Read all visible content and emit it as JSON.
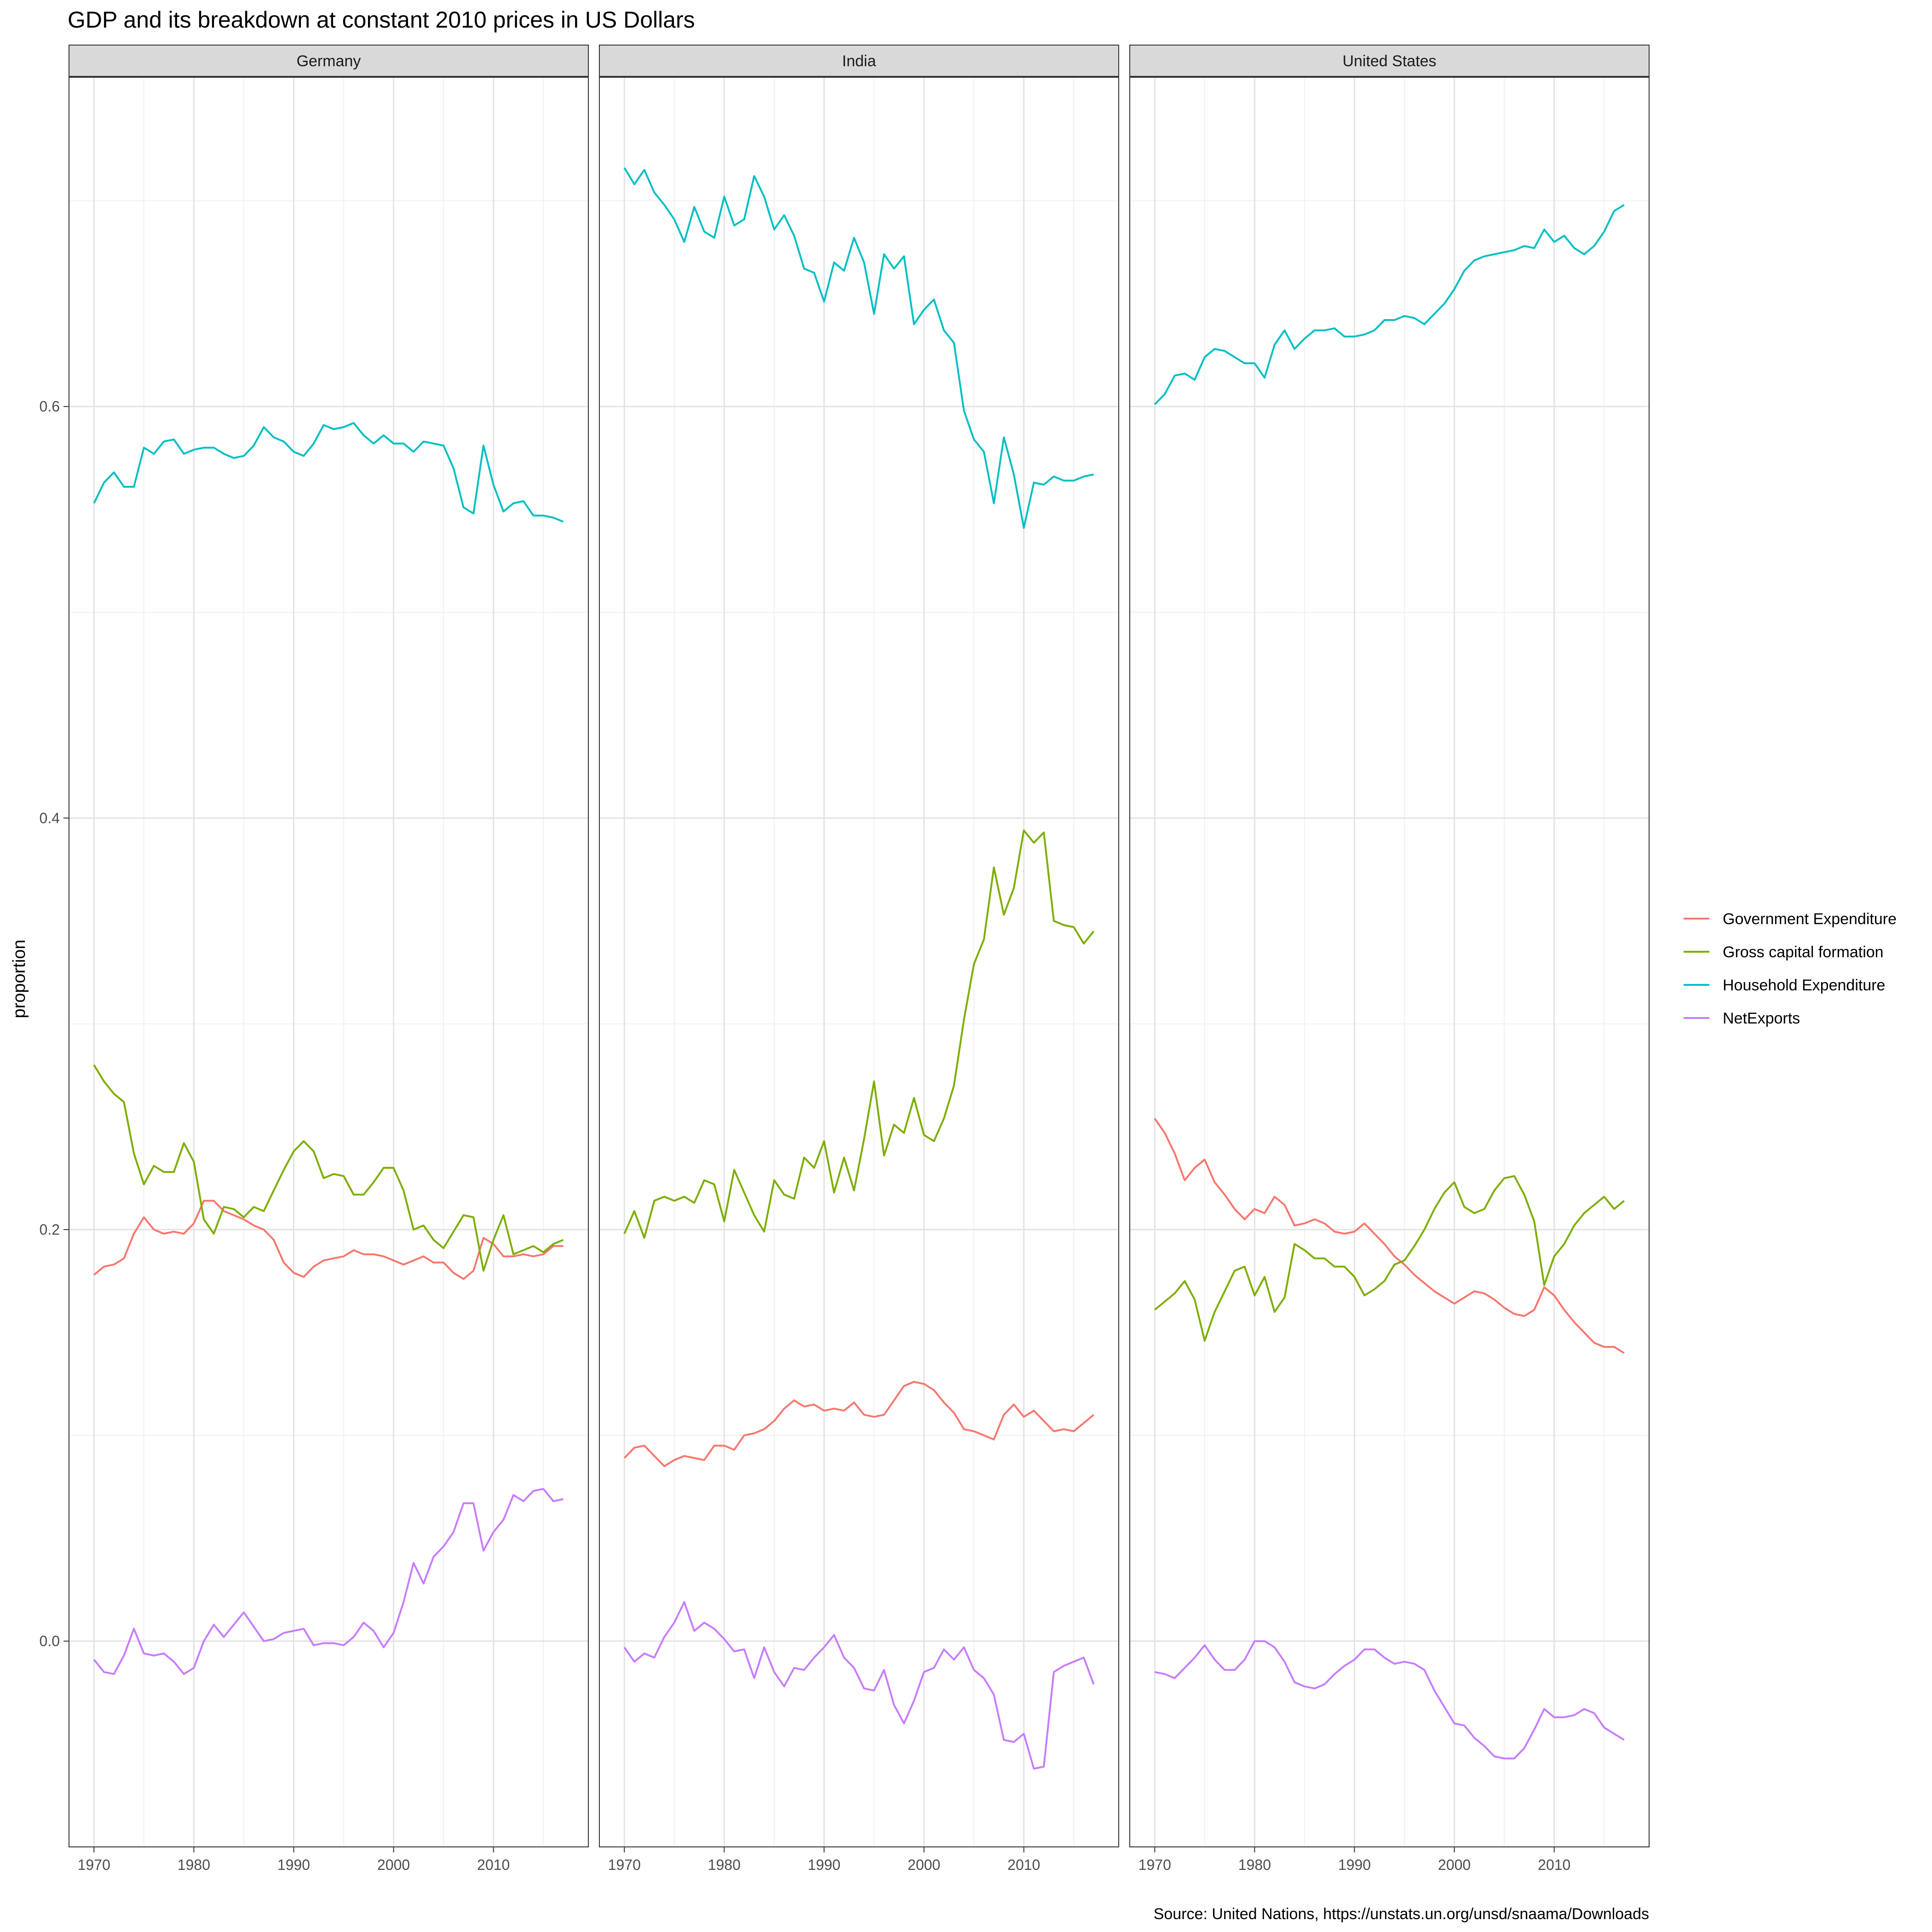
{
  "title": "GDP and its breakdown at constant 2010 prices in US Dollars",
  "ylabel": "proportion",
  "caption": "Source: United Nations, https://unstats.un.org/unsd/snaama/Downloads",
  "colors": {
    "Government Expenditure": "#F8766D",
    "Gross capital formation": "#7CAE00",
    "Household Expenditure": "#00BFC4",
    "NetExports": "#C77CFF"
  },
  "chart_data": {
    "type": "line",
    "facets": [
      "Germany",
      "India",
      "United States"
    ],
    "xlim": [
      1967.5,
      2019.5
    ],
    "ylim": [
      -0.1,
      0.76
    ],
    "x_ticks": [
      1970,
      1980,
      1990,
      2000,
      2010
    ],
    "y_ticks": [
      0.0,
      0.2,
      0.4,
      0.6
    ],
    "y_tick_labels": [
      "0.0",
      "0.2",
      "0.4",
      "0.6"
    ],
    "legend_position": "right",
    "grid": true,
    "series_names": [
      "Government Expenditure",
      "Gross capital formation",
      "Household Expenditure",
      "NetExports"
    ],
    "year_start": 1970,
    "data": {
      "Germany": {
        "Government Expenditure": [
          0.178,
          0.182,
          0.183,
          0.186,
          0.198,
          0.206,
          0.2,
          0.198,
          0.199,
          0.198,
          0.203,
          0.214,
          0.214,
          0.209,
          0.207,
          0.205,
          0.202,
          0.2,
          0.195,
          0.184,
          0.179,
          0.177,
          0.182,
          0.185,
          0.186,
          0.187,
          0.19,
          0.188,
          0.188,
          0.187,
          0.185,
          0.183,
          0.185,
          0.187,
          0.184,
          0.184,
          0.179,
          0.176,
          0.18,
          0.196,
          0.193,
          0.187,
          0.187,
          0.188,
          0.187,
          0.188,
          0.192,
          0.192
        ],
        "Gross capital formation": [
          0.28,
          0.272,
          0.266,
          0.262,
          0.237,
          0.222,
          0.231,
          0.228,
          0.228,
          0.242,
          0.233,
          0.205,
          0.198,
          0.211,
          0.21,
          0.206,
          0.211,
          0.209,
          0.219,
          0.229,
          0.238,
          0.243,
          0.238,
          0.225,
          0.227,
          0.226,
          0.217,
          0.217,
          0.223,
          0.23,
          0.23,
          0.219,
          0.2,
          0.202,
          0.195,
          0.191,
          0.199,
          0.207,
          0.206,
          0.18,
          0.195,
          0.207,
          0.188,
          0.19,
          0.192,
          0.189,
          0.193,
          0.195
        ],
        "Household Expenditure": [
          0.553,
          0.563,
          0.568,
          0.561,
          0.561,
          0.58,
          0.577,
          0.583,
          0.584,
          0.577,
          0.579,
          0.58,
          0.58,
          0.577,
          0.575,
          0.576,
          0.581,
          0.59,
          0.585,
          0.583,
          0.578,
          0.576,
          0.582,
          0.591,
          0.589,
          0.59,
          0.592,
          0.586,
          0.582,
          0.586,
          0.582,
          0.582,
          0.578,
          0.583,
          0.582,
          0.581,
          0.57,
          0.551,
          0.548,
          0.581,
          0.562,
          0.549,
          0.553,
          0.554,
          0.547,
          0.547,
          0.546,
          0.544
        ],
        "NetExports": [
          -0.009,
          -0.015,
          -0.016,
          -0.007,
          0.006,
          -0.006,
          -0.007,
          -0.006,
          -0.01,
          -0.016,
          -0.013,
          0.0,
          0.008,
          0.002,
          0.008,
          0.014,
          0.007,
          0.0,
          0.001,
          0.004,
          0.005,
          0.006,
          -0.002,
          -0.001,
          -0.001,
          -0.002,
          0.002,
          0.009,
          0.005,
          -0.003,
          0.004,
          0.019,
          0.038,
          0.028,
          0.041,
          0.046,
          0.053,
          0.067,
          0.067,
          0.044,
          0.053,
          0.059,
          0.071,
          0.068,
          0.073,
          0.074,
          0.068,
          0.069
        ]
      },
      "India": {
        "Government Expenditure": [
          0.089,
          0.094,
          0.095,
          0.09,
          0.085,
          0.088,
          0.09,
          0.089,
          0.088,
          0.095,
          0.095,
          0.093,
          0.1,
          0.101,
          0.103,
          0.107,
          0.113,
          0.117,
          0.114,
          0.115,
          0.112,
          0.113,
          0.112,
          0.116,
          0.11,
          0.109,
          0.11,
          0.117,
          0.124,
          0.126,
          0.125,
          0.122,
          0.116,
          0.111,
          0.103,
          0.102,
          0.1,
          0.098,
          0.11,
          0.115,
          0.109,
          0.112,
          0.107,
          0.102,
          0.103,
          0.102,
          0.106,
          0.11
        ],
        "Gross capital formation": [
          0.198,
          0.209,
          0.196,
          0.214,
          0.216,
          0.214,
          0.216,
          0.213,
          0.224,
          0.222,
          0.204,
          0.229,
          0.218,
          0.207,
          0.199,
          0.224,
          0.217,
          0.215,
          0.235,
          0.23,
          0.243,
          0.218,
          0.235,
          0.219,
          0.244,
          0.272,
          0.236,
          0.251,
          0.247,
          0.264,
          0.246,
          0.243,
          0.254,
          0.27,
          0.302,
          0.329,
          0.341,
          0.376,
          0.353,
          0.366,
          0.394,
          0.388,
          0.393,
          0.35,
          0.348,
          0.347,
          0.339,
          0.345
        ],
        "Household Expenditure": [
          0.716,
          0.708,
          0.715,
          0.704,
          0.698,
          0.691,
          0.68,
          0.697,
          0.685,
          0.682,
          0.702,
          0.688,
          0.691,
          0.712,
          0.702,
          0.686,
          0.693,
          0.683,
          0.667,
          0.665,
          0.651,
          0.67,
          0.666,
          0.682,
          0.67,
          0.645,
          0.674,
          0.667,
          0.673,
          0.64,
          0.647,
          0.652,
          0.637,
          0.631,
          0.598,
          0.584,
          0.578,
          0.553,
          0.585,
          0.567,
          0.541,
          0.563,
          0.562,
          0.566,
          0.564,
          0.564,
          0.566,
          0.567
        ],
        "NetExports": [
          -0.003,
          -0.01,
          -0.006,
          -0.008,
          0.002,
          0.009,
          0.019,
          0.005,
          0.009,
          0.006,
          0.001,
          -0.005,
          -0.004,
          -0.018,
          -0.003,
          -0.015,
          -0.022,
          -0.013,
          -0.014,
          -0.008,
          -0.003,
          0.003,
          -0.008,
          -0.013,
          -0.023,
          -0.024,
          -0.014,
          -0.031,
          -0.04,
          -0.029,
          -0.015,
          -0.013,
          -0.004,
          -0.009,
          -0.003,
          -0.014,
          -0.018,
          -0.026,
          -0.048,
          -0.049,
          -0.045,
          -0.062,
          -0.061,
          -0.015,
          -0.012,
          -0.01,
          -0.008,
          -0.021
        ]
      },
      "United States": {
        "Government Expenditure": [
          0.254,
          0.247,
          0.237,
          0.224,
          0.23,
          0.234,
          0.223,
          0.217,
          0.21,
          0.205,
          0.21,
          0.208,
          0.216,
          0.212,
          0.202,
          0.203,
          0.205,
          0.203,
          0.199,
          0.198,
          0.199,
          0.203,
          0.198,
          0.193,
          0.187,
          0.183,
          0.178,
          0.174,
          0.17,
          0.167,
          0.164,
          0.167,
          0.17,
          0.169,
          0.166,
          0.162,
          0.159,
          0.158,
          0.161,
          0.172,
          0.168,
          0.161,
          0.155,
          0.15,
          0.145,
          0.143,
          0.143,
          0.14
        ],
        "Gross capital formation": [
          0.161,
          0.165,
          0.169,
          0.175,
          0.166,
          0.146,
          0.16,
          0.17,
          0.18,
          0.182,
          0.168,
          0.177,
          0.16,
          0.167,
          0.193,
          0.19,
          0.186,
          0.186,
          0.182,
          0.182,
          0.177,
          0.168,
          0.171,
          0.175,
          0.183,
          0.185,
          0.192,
          0.2,
          0.21,
          0.218,
          0.223,
          0.211,
          0.208,
          0.21,
          0.219,
          0.225,
          0.226,
          0.217,
          0.204,
          0.173,
          0.187,
          0.193,
          0.202,
          0.208,
          0.212,
          0.216,
          0.21,
          0.214
        ],
        "Household Expenditure": [
          0.601,
          0.606,
          0.615,
          0.616,
          0.613,
          0.624,
          0.628,
          0.627,
          0.624,
          0.621,
          0.621,
          0.614,
          0.63,
          0.637,
          0.628,
          0.633,
          0.637,
          0.637,
          0.638,
          0.634,
          0.634,
          0.635,
          0.637,
          0.642,
          0.642,
          0.644,
          0.643,
          0.64,
          0.645,
          0.65,
          0.657,
          0.666,
          0.671,
          0.673,
          0.674,
          0.675,
          0.676,
          0.678,
          0.677,
          0.686,
          0.68,
          0.683,
          0.677,
          0.674,
          0.678,
          0.685,
          0.695,
          0.698
        ],
        "NetExports": [
          -0.015,
          -0.016,
          -0.018,
          -0.013,
          -0.008,
          -0.002,
          -0.009,
          -0.014,
          -0.014,
          -0.009,
          0.0,
          0.0,
          -0.003,
          -0.01,
          -0.02,
          -0.022,
          -0.023,
          -0.021,
          -0.016,
          -0.012,
          -0.009,
          -0.004,
          -0.004,
          -0.008,
          -0.011,
          -0.01,
          -0.011,
          -0.014,
          -0.024,
          -0.032,
          -0.04,
          -0.041,
          -0.047,
          -0.051,
          -0.056,
          -0.057,
          -0.057,
          -0.052,
          -0.043,
          -0.033,
          -0.037,
          -0.037,
          -0.036,
          -0.033,
          -0.035,
          -0.042,
          -0.045,
          -0.048
        ]
      }
    }
  }
}
